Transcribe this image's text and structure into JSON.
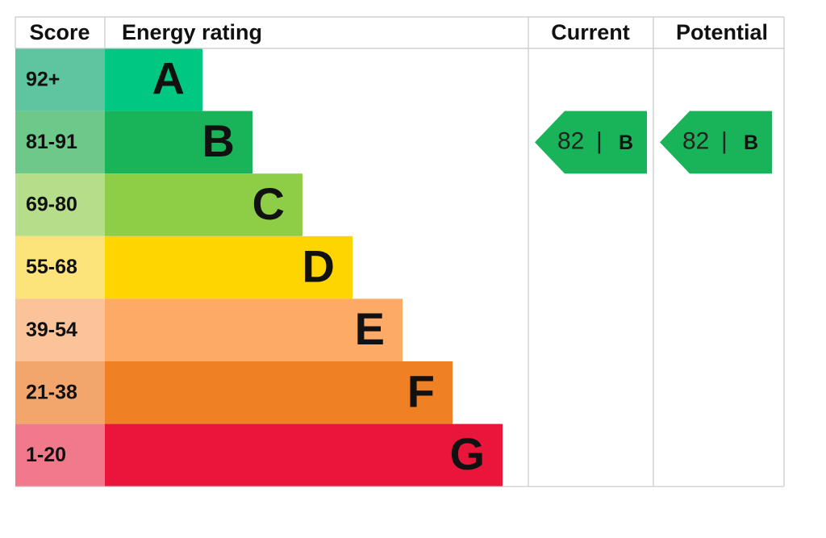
{
  "headers": [
    "Score",
    "Energy rating",
    "Current",
    "Potential"
  ],
  "rows": [
    {
      "score": "92+",
      "rating": "A",
      "score_color": "#5fc4a0",
      "bar_color": "#00c781"
    },
    {
      "score": "81-91",
      "rating": "B",
      "score_color": "#6cc98a",
      "bar_color": "#19b459"
    },
    {
      "score": "69-80",
      "rating": "C",
      "score_color": "#b6dd8a",
      "bar_color": "#8dce46"
    },
    {
      "score": "55-68",
      "rating": "D",
      "score_color": "#fde47a",
      "bar_color": "#ffd500"
    },
    {
      "score": "39-54",
      "rating": "E",
      "score_color": "#fbc39a",
      "bar_color": "#fcaa65"
    },
    {
      "score": "21-38",
      "rating": "F",
      "score_color": "#f3a66c",
      "bar_color": "#ef8023"
    },
    {
      "score": "1-20",
      "rating": "G",
      "score_color": "#f07a8b",
      "bar_color": "#e9153b"
    }
  ],
  "current": {
    "value": 82,
    "separator": "|",
    "rating": "B"
  },
  "potential": {
    "value": 82,
    "separator": "|",
    "rating": "B"
  }
}
